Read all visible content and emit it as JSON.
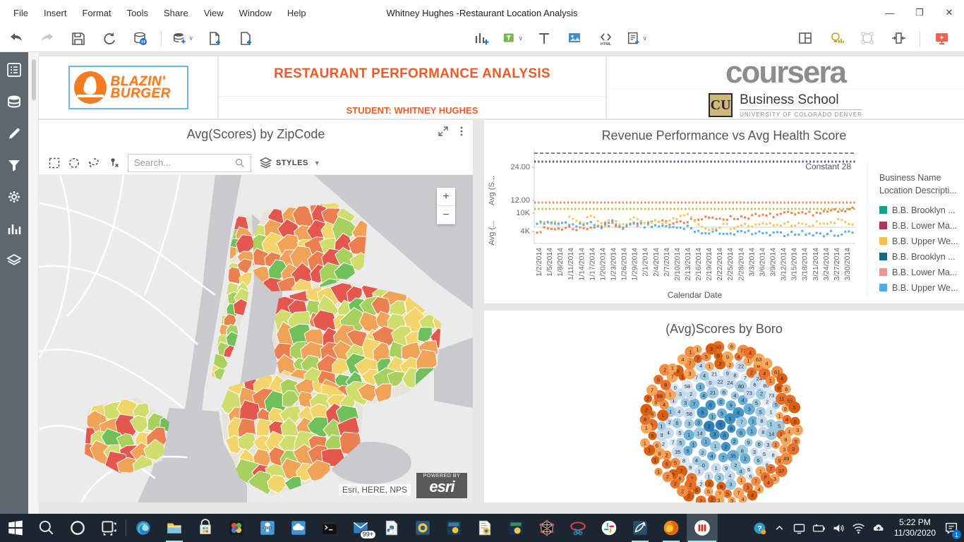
{
  "window": {
    "title": "Whitney Hughes -Restaurant Location Analysis",
    "menu": [
      "File",
      "Insert",
      "Format",
      "Tools",
      "Share",
      "View",
      "Window",
      "Help"
    ],
    "controls": [
      "minimize",
      "restore",
      "close"
    ]
  },
  "toolbar": {
    "left_icons": [
      "undo",
      "redo",
      "save",
      "refresh",
      "pause-data",
      "sep",
      "add-data",
      "add-page",
      "add-page-2"
    ],
    "mid_icons": [
      "insert-visualization",
      "insert-filter",
      "insert-text",
      "insert-image",
      "insert-html",
      "insert-panel"
    ],
    "right_icons": [
      "layout",
      "insights",
      "group",
      "fit-width",
      "sep",
      "present"
    ]
  },
  "sidebar": {
    "icons": [
      "contents",
      "datasets",
      "edit",
      "filter",
      "settings",
      "visualizations",
      "layers"
    ]
  },
  "header": {
    "logo_line1": "BLAZIN'",
    "logo_line2": "BURGER",
    "title": "RESTAURANT PERFORMANCE ANALYSIS",
    "subtitle": "STUDENT: WHITNEY HUGHES",
    "coursera": "coursera",
    "cu_monogram": "CU",
    "cu_line1": "Business School",
    "cu_line2": "UNIVERSITY OF COLORADO DENVER"
  },
  "map_panel": {
    "title": "Avg(Scores) by ZipCode",
    "search_placeholder": "Search...",
    "styles_label": "STYLES",
    "zoom_in": "+",
    "zoom_out": "−",
    "attribution": "Esri, HERE, NPS",
    "powered_by": "POWERED BY",
    "esri": "esri",
    "palette": [
      "#6fbf5a",
      "#a8d05e",
      "#cfdd6c",
      "#f2d468",
      "#f0a259",
      "#ec7f4f",
      "#e4564e"
    ],
    "palette_weights": [
      0.1,
      0.12,
      0.14,
      0.22,
      0.16,
      0.14,
      0.12
    ]
  },
  "chart_data": [
    {
      "type": "scatter",
      "title": "Revenue Performance vs Avg Health Score",
      "xlabel": "Calendar Date",
      "x": [
        "1/2/2014",
        "1/5/2014",
        "1/8/2014",
        "1/11/2014",
        "1/14/2014",
        "1/17/2014",
        "1/20/2014",
        "1/23/2014",
        "1/26/2014",
        "1/29/2014",
        "2/1/2014",
        "2/4/2014",
        "2/7/2014",
        "2/10/2014",
        "2/13/2014",
        "2/16/2014",
        "2/19/2014",
        "2/22/2014",
        "2/25/2014",
        "2/28/2014",
        "3/3/2014",
        "3/6/2014",
        "3/9/2014",
        "3/12/2014",
        "3/15/2014",
        "3/18/2014",
        "3/21/2014",
        "3/24/2014",
        "3/27/2014",
        "3/30/2014"
      ],
      "top_panel": {
        "ylabel": "Avg (S...",
        "yticks": [
          "24.00",
          "12.00"
        ],
        "reference_lines": [
          {
            "label": "Constant 28",
            "value": 28,
            "style": "dashed",
            "color": "#3a3a3a"
          },
          {
            "value": 26,
            "style": "dotted",
            "color": "#55539a"
          },
          {
            "value": 12,
            "style": "dotted",
            "color": "#f08050"
          },
          {
            "value": 10.5,
            "style": "dotted",
            "color": "#b9bd3c"
          }
        ]
      },
      "bottom_panel": {
        "ylabel": "Avg (...",
        "yticks": [
          "10K",
          "4K"
        ]
      },
      "series": [
        {
          "name": "B.B. Lower Ma...",
          "color": "#f08050",
          "values_k": [
            4.3,
            4.6,
            4.9,
            5.1,
            4.8,
            5.4,
            5.9,
            6.2,
            5.7,
            6.4,
            6.6,
            6.9,
            6.7,
            7.3,
            7.6,
            7.9,
            8.1,
            8.4,
            8.2,
            8.7,
            9.0,
            8.8,
            9.3,
            9.6,
            9.2,
            9.8,
            10.1,
            10.4,
            10.2,
            11.3
          ]
        },
        {
          "name": "B.B. Upper We...",
          "color": "#f2c75c",
          "values_k": [
            6.4,
            7.9,
            5.6,
            8.6,
            6.1,
            8.9,
            5.9,
            7.4,
            6.3,
            8.1,
            5.6,
            7.1,
            6.6,
            8.7,
            9.7,
            5.6,
            5.1,
            5.9,
            5.3,
            6.1,
            5.6,
            6.3,
            5.9,
            6.6,
            6.1,
            5.6,
            6.9,
            6.3,
            7.6,
            6.1
          ]
        },
        {
          "name": "B.B. Brooklyn ...",
          "color": "#5aaedd",
          "values_k": [
            6.7,
            6.1,
            6.6,
            5.9,
            6.2,
            6.4,
            5.6,
            6.9,
            5.3,
            6.1,
            5.6,
            5.9,
            5.1,
            4.9,
            5.3,
            3.4,
            3.1,
            3.9,
            3.0,
            3.6,
            3.3,
            3.0,
            2.9,
            3.3,
            3.6,
            3.1,
            2.9,
            3.3,
            3.1,
            3.9
          ]
        }
      ],
      "legend": {
        "title_line1": "Business Name",
        "title_line2": "Location Descripti...",
        "items": [
          {
            "label": "B.B. Brooklyn ...",
            "color": "#18a08c"
          },
          {
            "label": "B.B. Lower Ma...",
            "color": "#b43157"
          },
          {
            "label": "B.B. Upper We...",
            "color": "#f6bf4f"
          },
          {
            "label": "B.B. Brooklyn ...",
            "color": "#13678a"
          },
          {
            "label": "B.B. Lower Ma...",
            "color": "#f29492"
          },
          {
            "label": "B.B. Upper We...",
            "color": "#47b0e6"
          }
        ]
      }
    },
    {
      "type": "bubble_pack",
      "title": "(Avg)Scores by Boro",
      "outer_values": [
        2,
        2,
        2,
        1,
        1,
        1,
        1,
        1,
        8,
        2,
        2,
        7,
        5,
        2,
        1,
        4,
        1,
        1,
        3,
        1,
        9,
        4,
        1,
        8,
        4,
        1,
        8,
        11,
        8,
        4,
        1,
        8,
        3,
        9,
        7,
        8,
        7,
        3,
        7,
        5,
        7,
        6,
        6,
        2,
        6,
        6,
        6,
        8,
        6,
        5,
        5,
        8,
        8,
        99,
        8,
        7,
        5,
        7,
        7,
        5,
        6,
        50,
        6,
        73,
        4,
        63,
        4,
        61,
        4,
        6,
        55,
        5,
        5,
        3,
        5,
        3,
        49,
        37,
        3,
        4,
        4,
        4,
        4,
        3,
        3,
        2,
        2,
        2
      ],
      "inner_values_pool": [
        5,
        5,
        5,
        6,
        4,
        3,
        2,
        1,
        0,
        9,
        8,
        7,
        6,
        2,
        2,
        1,
        1,
        14,
        3,
        5,
        6,
        6,
        4,
        4,
        3,
        1,
        1,
        9,
        8,
        35,
        7,
        4,
        2,
        1,
        1,
        3,
        58,
        7,
        4,
        21,
        22,
        24,
        80,
        73,
        5,
        5,
        8,
        8,
        6,
        3,
        2,
        2,
        9,
        1,
        0,
        4
      ],
      "rings": [
        {
          "r": 0,
          "n": 1
        },
        {
          "r": 16,
          "n": 7
        },
        {
          "r": 31,
          "n": 13
        },
        {
          "r": 46,
          "n": 19
        },
        {
          "r": 60,
          "n": 25
        },
        {
          "r": 73,
          "n": 31
        },
        {
          "r": 85,
          "n": 36
        },
        {
          "r": 96,
          "n": 41
        },
        {
          "r": 107,
          "n": 46
        }
      ],
      "blue_palette": [
        "#d9e8f5",
        "#c6dbef",
        "#9ecae1",
        "#6baed6",
        "#4292c6",
        "#2e7ebc"
      ],
      "orange_palette": [
        "#f9a65a",
        "#f28e44",
        "#e8702a",
        "#d95f0e"
      ]
    }
  ],
  "taskbar": {
    "pinned": [
      "start",
      "search",
      "cortana",
      "task-view",
      "sep",
      "edge",
      "file-explorer",
      "store",
      "photos",
      "password-manager",
      "cloud-drive",
      "terminal",
      "mail",
      "python-file",
      "python-editor",
      "python-console",
      "python-file-2",
      "python-console-2",
      "network-graph",
      "snipping-tool",
      "slack",
      "mysql-workbench",
      "firefox",
      "microstrategy"
    ],
    "mail_badge": "99+",
    "tray_icons": [
      "tray-help",
      "chevron-up",
      "connect-display",
      "battery",
      "speaker",
      "wifi",
      "onedrive",
      "clock",
      "notifications"
    ],
    "time": "5:22 PM",
    "date": "11/30/2020",
    "notification_count": "1"
  }
}
